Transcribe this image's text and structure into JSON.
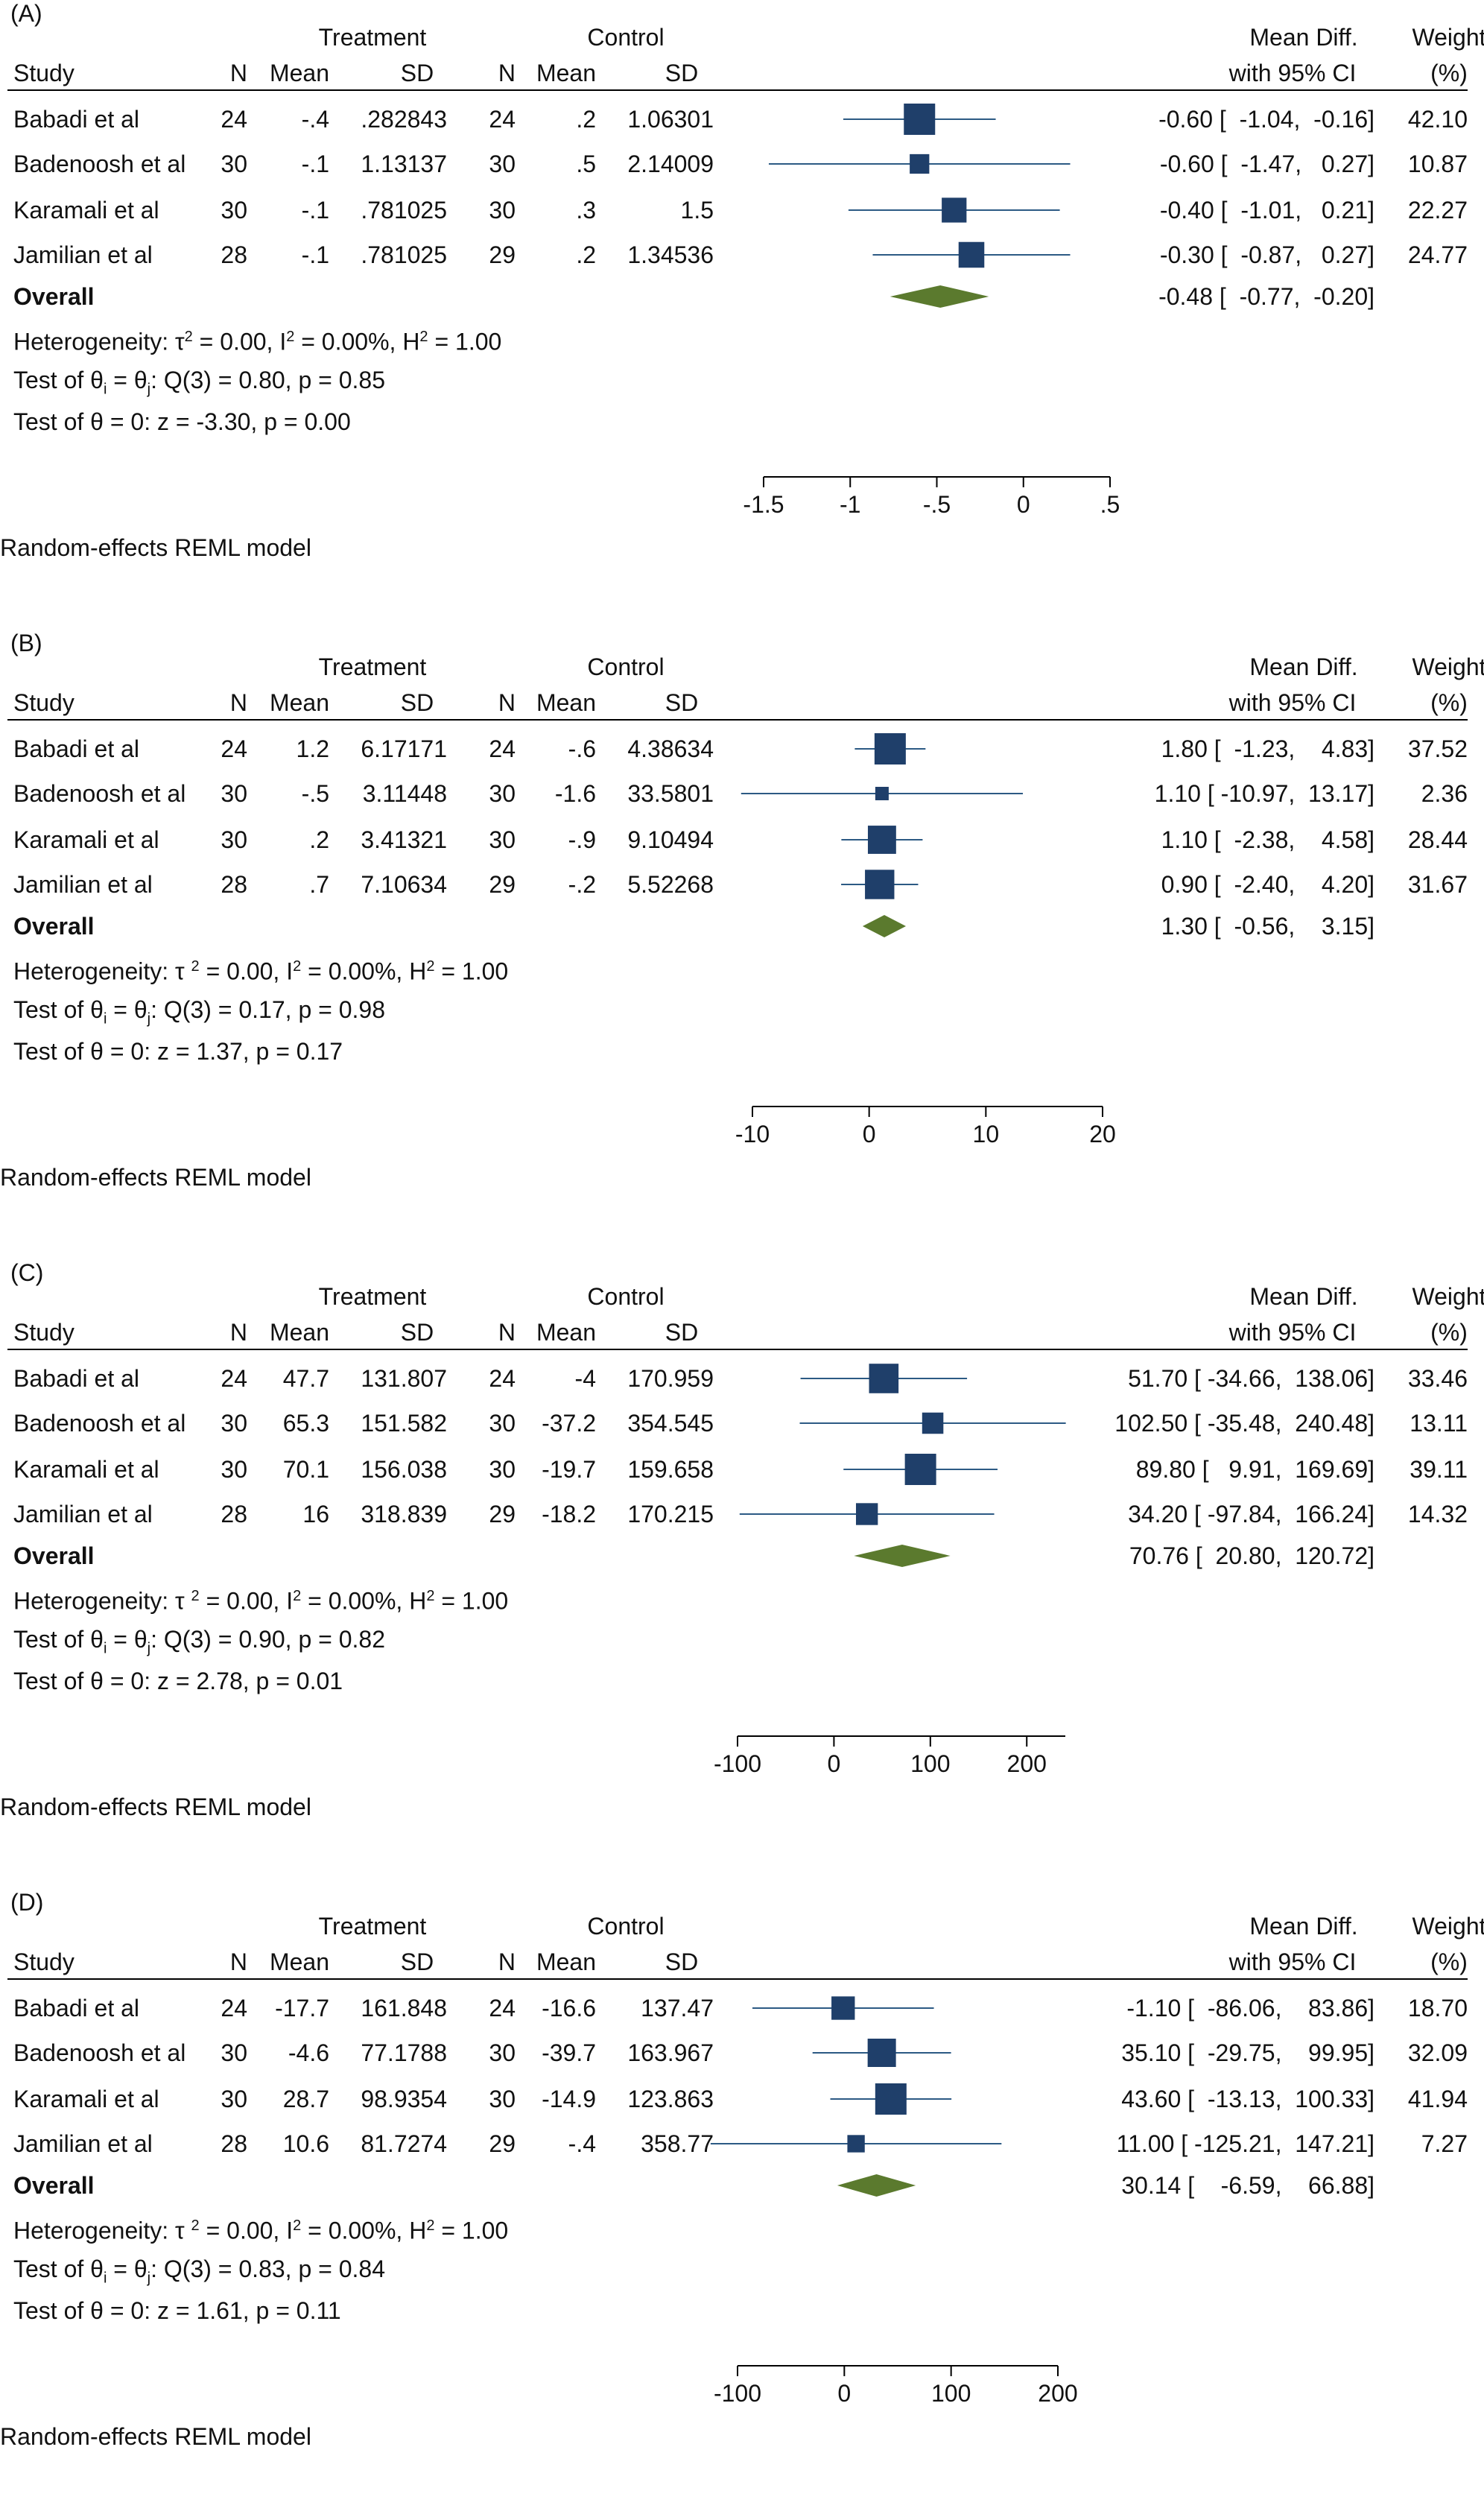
{
  "colors": {
    "square": "#1f3f6a",
    "ci_line": "#2c5a84",
    "diamond": "#5b7a2e",
    "axis": "#000000"
  },
  "headers": {
    "study": "Study",
    "treatment": "Treatment",
    "control": "Control",
    "n": "N",
    "mean": "Mean",
    "sd": "SD",
    "md1": "Mean Diff.",
    "md2": "with 95% CI",
    "w1": "Weight",
    "w2": "(%)"
  },
  "overall_label": "Overall",
  "model_label": "Random-effects REML model",
  "chart_data": [
    {
      "type": "forest",
      "panel_label": "(A)",
      "xlim": [
        -1.5,
        0.5
      ],
      "ticks": [
        -1.5,
        -1,
        -0.5,
        0,
        0.5
      ],
      "tick_labels": [
        "-1.5",
        "-1",
        "-.5",
        "0",
        ".5"
      ],
      "studies": [
        {
          "name": "Babadi et al",
          "tn": "24",
          "tmean": "-.4",
          "tsd": ".282843",
          "cn": "24",
          "cmean": ".2",
          "csd": "1.06301",
          "md": -0.6,
          "lo": -1.04,
          "hi": -0.16,
          "ci_text": "-0.60 [  -1.04,  -0.16]",
          "weight": 42.1,
          "weight_text": "42.10"
        },
        {
          "name": "Badenoosh et al",
          "tn": "30",
          "tmean": "-.1",
          "tsd": "1.13137",
          "cn": "30",
          "cmean": ".5",
          "csd": "2.14009",
          "md": -0.6,
          "lo": -1.47,
          "hi": 0.27,
          "ci_text": "-0.60 [  -1.47,   0.27]",
          "weight": 10.87,
          "weight_text": "10.87"
        },
        {
          "name": "Karamali et al",
          "tn": "30",
          "tmean": "-.1",
          "tsd": ".781025",
          "cn": "30",
          "cmean": ".3",
          "csd": "1.5",
          "md": -0.4,
          "lo": -1.01,
          "hi": 0.21,
          "ci_text": "-0.40 [  -1.01,   0.21]",
          "weight": 22.27,
          "weight_text": "22.27"
        },
        {
          "name": "Jamilian et al",
          "tn": "28",
          "tmean": "-.1",
          "tsd": ".781025",
          "cn": "29",
          "cmean": ".2",
          "csd": "1.34536",
          "md": -0.3,
          "lo": -0.87,
          "hi": 0.27,
          "ci_text": "-0.30 [  -0.87,   0.27]",
          "weight": 24.77,
          "weight_text": "24.77"
        }
      ],
      "overall": {
        "md": -0.48,
        "lo": -0.77,
        "hi": -0.2,
        "ci_text": "-0.48 [  -0.77,  -0.20]"
      },
      "heterogeneity": {
        "prefix": "Heterogeneity: τ",
        "sup1": "2",
        "mid1": " = 0.00, I",
        "sup2": "2",
        "mid2": " = 0.00%, H",
        "sup3": "2",
        "end": " = 1.00"
      },
      "test1": {
        "prefix": "Test of θ",
        "sub1": "i",
        "mid": " = θ",
        "sub2": "j",
        "end": ": Q(3) = 0.80, p = 0.85"
      },
      "test2": "Test of θ = 0: z = -3.30, p = 0.00"
    },
    {
      "type": "forest",
      "panel_label": "(B)",
      "xlim": [
        -10,
        20
      ],
      "ticks": [
        -10,
        0,
        10,
        20
      ],
      "tick_labels": [
        "-10",
        "0",
        "10",
        "20"
      ],
      "studies": [
        {
          "name": "Babadi et al",
          "tn": "24",
          "tmean": "1.2",
          "tsd": "6.17171",
          "cn": "24",
          "cmean": "-.6",
          "csd": "4.38634",
          "md": 1.8,
          "lo": -1.23,
          "hi": 4.83,
          "ci_text": "1.80 [  -1.23,    4.83]",
          "weight": 37.52,
          "weight_text": "37.52"
        },
        {
          "name": "Badenoosh et al",
          "tn": "30",
          "tmean": "-.5",
          "tsd": "3.11448",
          "cn": "30",
          "cmean": "-1.6",
          "csd": "33.5801",
          "md": 1.1,
          "lo": -10.97,
          "hi": 13.17,
          "ci_text": "1.10 [ -10.97,  13.17]",
          "weight": 2.36,
          "weight_text": "2.36"
        },
        {
          "name": "Karamali et al",
          "tn": "30",
          "tmean": ".2",
          "tsd": "3.41321",
          "cn": "30",
          "cmean": "-.9",
          "csd": "9.10494",
          "md": 1.1,
          "lo": -2.38,
          "hi": 4.58,
          "ci_text": "1.10 [  -2.38,    4.58]",
          "weight": 28.44,
          "weight_text": "28.44"
        },
        {
          "name": "Jamilian et al",
          "tn": "28",
          "tmean": ".7",
          "tsd": "7.10634",
          "cn": "29",
          "cmean": "-.2",
          "csd": "5.52268",
          "md": 0.9,
          "lo": -2.4,
          "hi": 4.2,
          "ci_text": "0.90 [  -2.40,    4.20]",
          "weight": 31.67,
          "weight_text": "31.67"
        }
      ],
      "overall": {
        "md": 1.3,
        "lo": -0.56,
        "hi": 3.15,
        "ci_text": "1.30 [  -0.56,    3.15]"
      },
      "heterogeneity": {
        "prefix": "Heterogeneity: τ ",
        "sup1": "2",
        "mid1": " = 0.00, I",
        "sup2": "2",
        "mid2": " = 0.00%, H",
        "sup3": "2",
        "end": " = 1.00"
      },
      "test1": {
        "prefix": "Test of θ",
        "sub1": "i",
        "mid": " = θ",
        "sub2": "j",
        "end": ": Q(3) = 0.17, p = 0.98"
      },
      "test2": "Test of θ = 0: z = 1.37, p = 0.17"
    },
    {
      "type": "forest",
      "panel_label": "(C)",
      "xlim": [
        -100,
        240
      ],
      "ticks": [
        -100,
        0,
        100,
        200
      ],
      "tick_labels": [
        "-100",
        "0",
        "100",
        "200"
      ],
      "studies": [
        {
          "name": "Babadi et al",
          "tn": "24",
          "tmean": "47.7",
          "tsd": "131.807",
          "cn": "24",
          "cmean": "-4",
          "csd": "170.959",
          "md": 51.7,
          "lo": -34.66,
          "hi": 138.06,
          "ci_text": "51.70 [ -34.66,  138.06]",
          "weight": 33.46,
          "weight_text": "33.46"
        },
        {
          "name": "Badenoosh et al",
          "tn": "30",
          "tmean": "65.3",
          "tsd": "151.582",
          "cn": "30",
          "cmean": "-37.2",
          "csd": "354.545",
          "md": 102.5,
          "lo": -35.48,
          "hi": 240.48,
          "ci_text": "102.50 [ -35.48,  240.48]",
          "weight": 13.11,
          "weight_text": "13.11"
        },
        {
          "name": "Karamali et al",
          "tn": "30",
          "tmean": "70.1",
          "tsd": "156.038",
          "cn": "30",
          "cmean": "-19.7",
          "csd": "159.658",
          "md": 89.8,
          "lo": 9.91,
          "hi": 169.69,
          "ci_text": "89.80 [   9.91,  169.69]",
          "weight": 39.11,
          "weight_text": "39.11"
        },
        {
          "name": "Jamilian et al",
          "tn": "28",
          "tmean": "16",
          "tsd": "318.839",
          "cn": "29",
          "cmean": "-18.2",
          "csd": "170.215",
          "md": 34.2,
          "lo": -97.84,
          "hi": 166.24,
          "ci_text": "34.20 [ -97.84,  166.24]",
          "weight": 14.32,
          "weight_text": "14.32"
        }
      ],
      "overall": {
        "md": 70.76,
        "lo": 20.8,
        "hi": 120.72,
        "ci_text": "70.76 [  20.80,  120.72]"
      },
      "heterogeneity": {
        "prefix": "Heterogeneity: τ ",
        "sup1": "2",
        "mid1": " = 0.00, I",
        "sup2": "2",
        "mid2": " = 0.00%, H",
        "sup3": "2",
        "end": " = 1.00"
      },
      "test1": {
        "prefix": "Test of θ",
        "sub1": "i",
        "mid": " = θ",
        "sub2": "j",
        "end": ": Q(3) = 0.90, p = 0.82"
      },
      "test2": "Test of θ = 0: z = 2.78, p = 0.01"
    },
    {
      "type": "forest",
      "panel_label": "(D)",
      "xlim": [
        -100,
        200
      ],
      "ticks": [
        -100,
        0,
        100,
        200
      ],
      "tick_labels": [
        "-100",
        "0",
        "100",
        "200"
      ],
      "studies": [
        {
          "name": "Babadi et al",
          "tn": "24",
          "tmean": "-17.7",
          "tsd": "161.848",
          "cn": "24",
          "cmean": "-16.6",
          "csd": "137.47",
          "md": -1.1,
          "lo": -86.06,
          "hi": 83.86,
          "ci_text": "-1.10 [  -86.06,    83.86]",
          "weight": 18.7,
          "weight_text": "18.70"
        },
        {
          "name": "Badenoosh et al",
          "tn": "30",
          "tmean": "-4.6",
          "tsd": "77.1788",
          "cn": "30",
          "cmean": "-39.7",
          "csd": "163.967",
          "md": 35.1,
          "lo": -29.75,
          "hi": 99.95,
          "ci_text": "35.10 [  -29.75,    99.95]",
          "weight": 32.09,
          "weight_text": "32.09"
        },
        {
          "name": "Karamali et al",
          "tn": "30",
          "tmean": "28.7",
          "tsd": "98.9354",
          "cn": "30",
          "cmean": "-14.9",
          "csd": "123.863",
          "md": 43.6,
          "lo": -13.13,
          "hi": 100.33,
          "ci_text": "43.60 [  -13.13,  100.33]",
          "weight": 41.94,
          "weight_text": "41.94"
        },
        {
          "name": "Jamilian et al",
          "tn": "28",
          "tmean": "10.6",
          "tsd": "81.7274",
          "cn": "29",
          "cmean": "-.4",
          "csd": "358.77",
          "md": 11.0,
          "lo": -125.21,
          "hi": 147.21,
          "ci_text": "11.00 [ -125.21,  147.21]",
          "weight": 7.27,
          "weight_text": "7.27"
        }
      ],
      "overall": {
        "md": 30.14,
        "lo": -6.59,
        "hi": 66.88,
        "ci_text": "30.14 [    -6.59,    66.88]"
      },
      "heterogeneity": {
        "prefix": "Heterogeneity: τ ",
        "sup1": "2",
        "mid1": " = 0.00, I",
        "sup2": "2",
        "mid2": " = 0.00%, H",
        "sup3": "2",
        "end": " = 1.00"
      },
      "test1": {
        "prefix": "Test of θ",
        "sub1": "i",
        "mid": " = θ",
        "sub2": "j",
        "end": ": Q(3) = 0.83, p = 0.84"
      },
      "test2": "Test of θ = 0: z = 1.61, p = 0.11"
    }
  ]
}
